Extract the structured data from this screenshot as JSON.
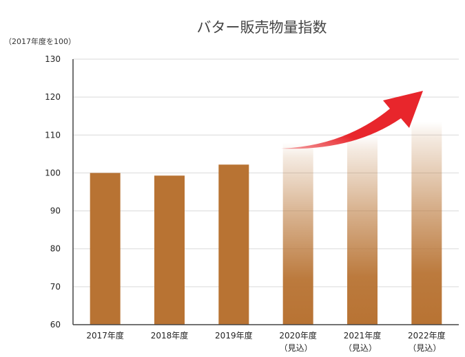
{
  "chart_data": {
    "type": "bar",
    "title": "バター販売物量指数",
    "ylabel": "（2017年度を100）",
    "xlabel": "",
    "ylim": [
      60,
      130
    ],
    "yticks": [
      60,
      70,
      80,
      90,
      100,
      110,
      120,
      130
    ],
    "grid": true,
    "categories": [
      "2017年度",
      "2018年度",
      "2019年度",
      "2020年度",
      "2021年度",
      "2022年度"
    ],
    "category_sublabels": [
      "",
      "",
      "",
      "（見込）",
      "（見込）",
      "（見込）"
    ],
    "values": [
      100,
      99.3,
      102.2,
      108.0,
      110.0,
      113.5
    ],
    "projected": [
      false,
      false,
      false,
      true,
      true,
      true
    ],
    "colors": {
      "bar": "#b87333",
      "arrow": "#e8262c",
      "grid": "#d9d9d9",
      "axis": "#444444"
    },
    "annotation_icon": "rising-trend-arrow"
  }
}
